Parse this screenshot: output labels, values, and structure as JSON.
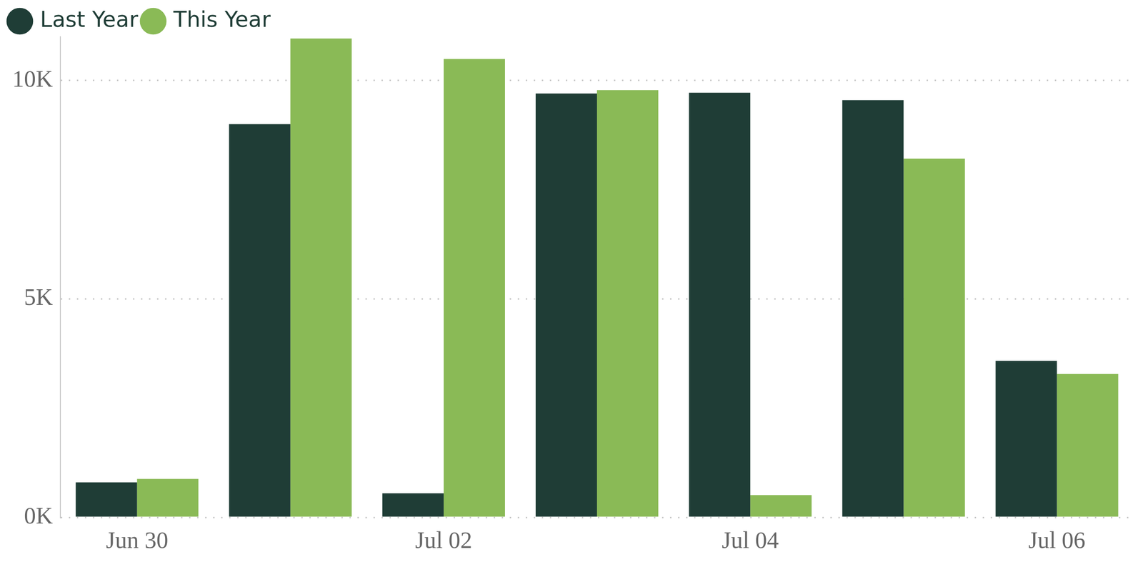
{
  "chart_data": {
    "type": "bar",
    "categories": [
      "Jun 30",
      null,
      "Jul 02",
      null,
      "Jul 04",
      null,
      "Jul 06"
    ],
    "series": [
      {
        "name": "Last Year",
        "color": "#1f3d36",
        "values": [
          800,
          9000,
          550,
          9700,
          9720,
          9550,
          3580
        ]
      },
      {
        "name": "This Year",
        "color": "#8aba56",
        "values": [
          880,
          10960,
          10490,
          9780,
          510,
          8210,
          3280
        ]
      }
    ],
    "ylim": [
      0,
      11000
    ],
    "yticks": [
      {
        "value": 0,
        "label": "0K"
      },
      {
        "value": 5000,
        "label": "5K"
      },
      {
        "value": 10000,
        "label": "10K"
      }
    ],
    "grid": true,
    "legend": "top-left"
  }
}
